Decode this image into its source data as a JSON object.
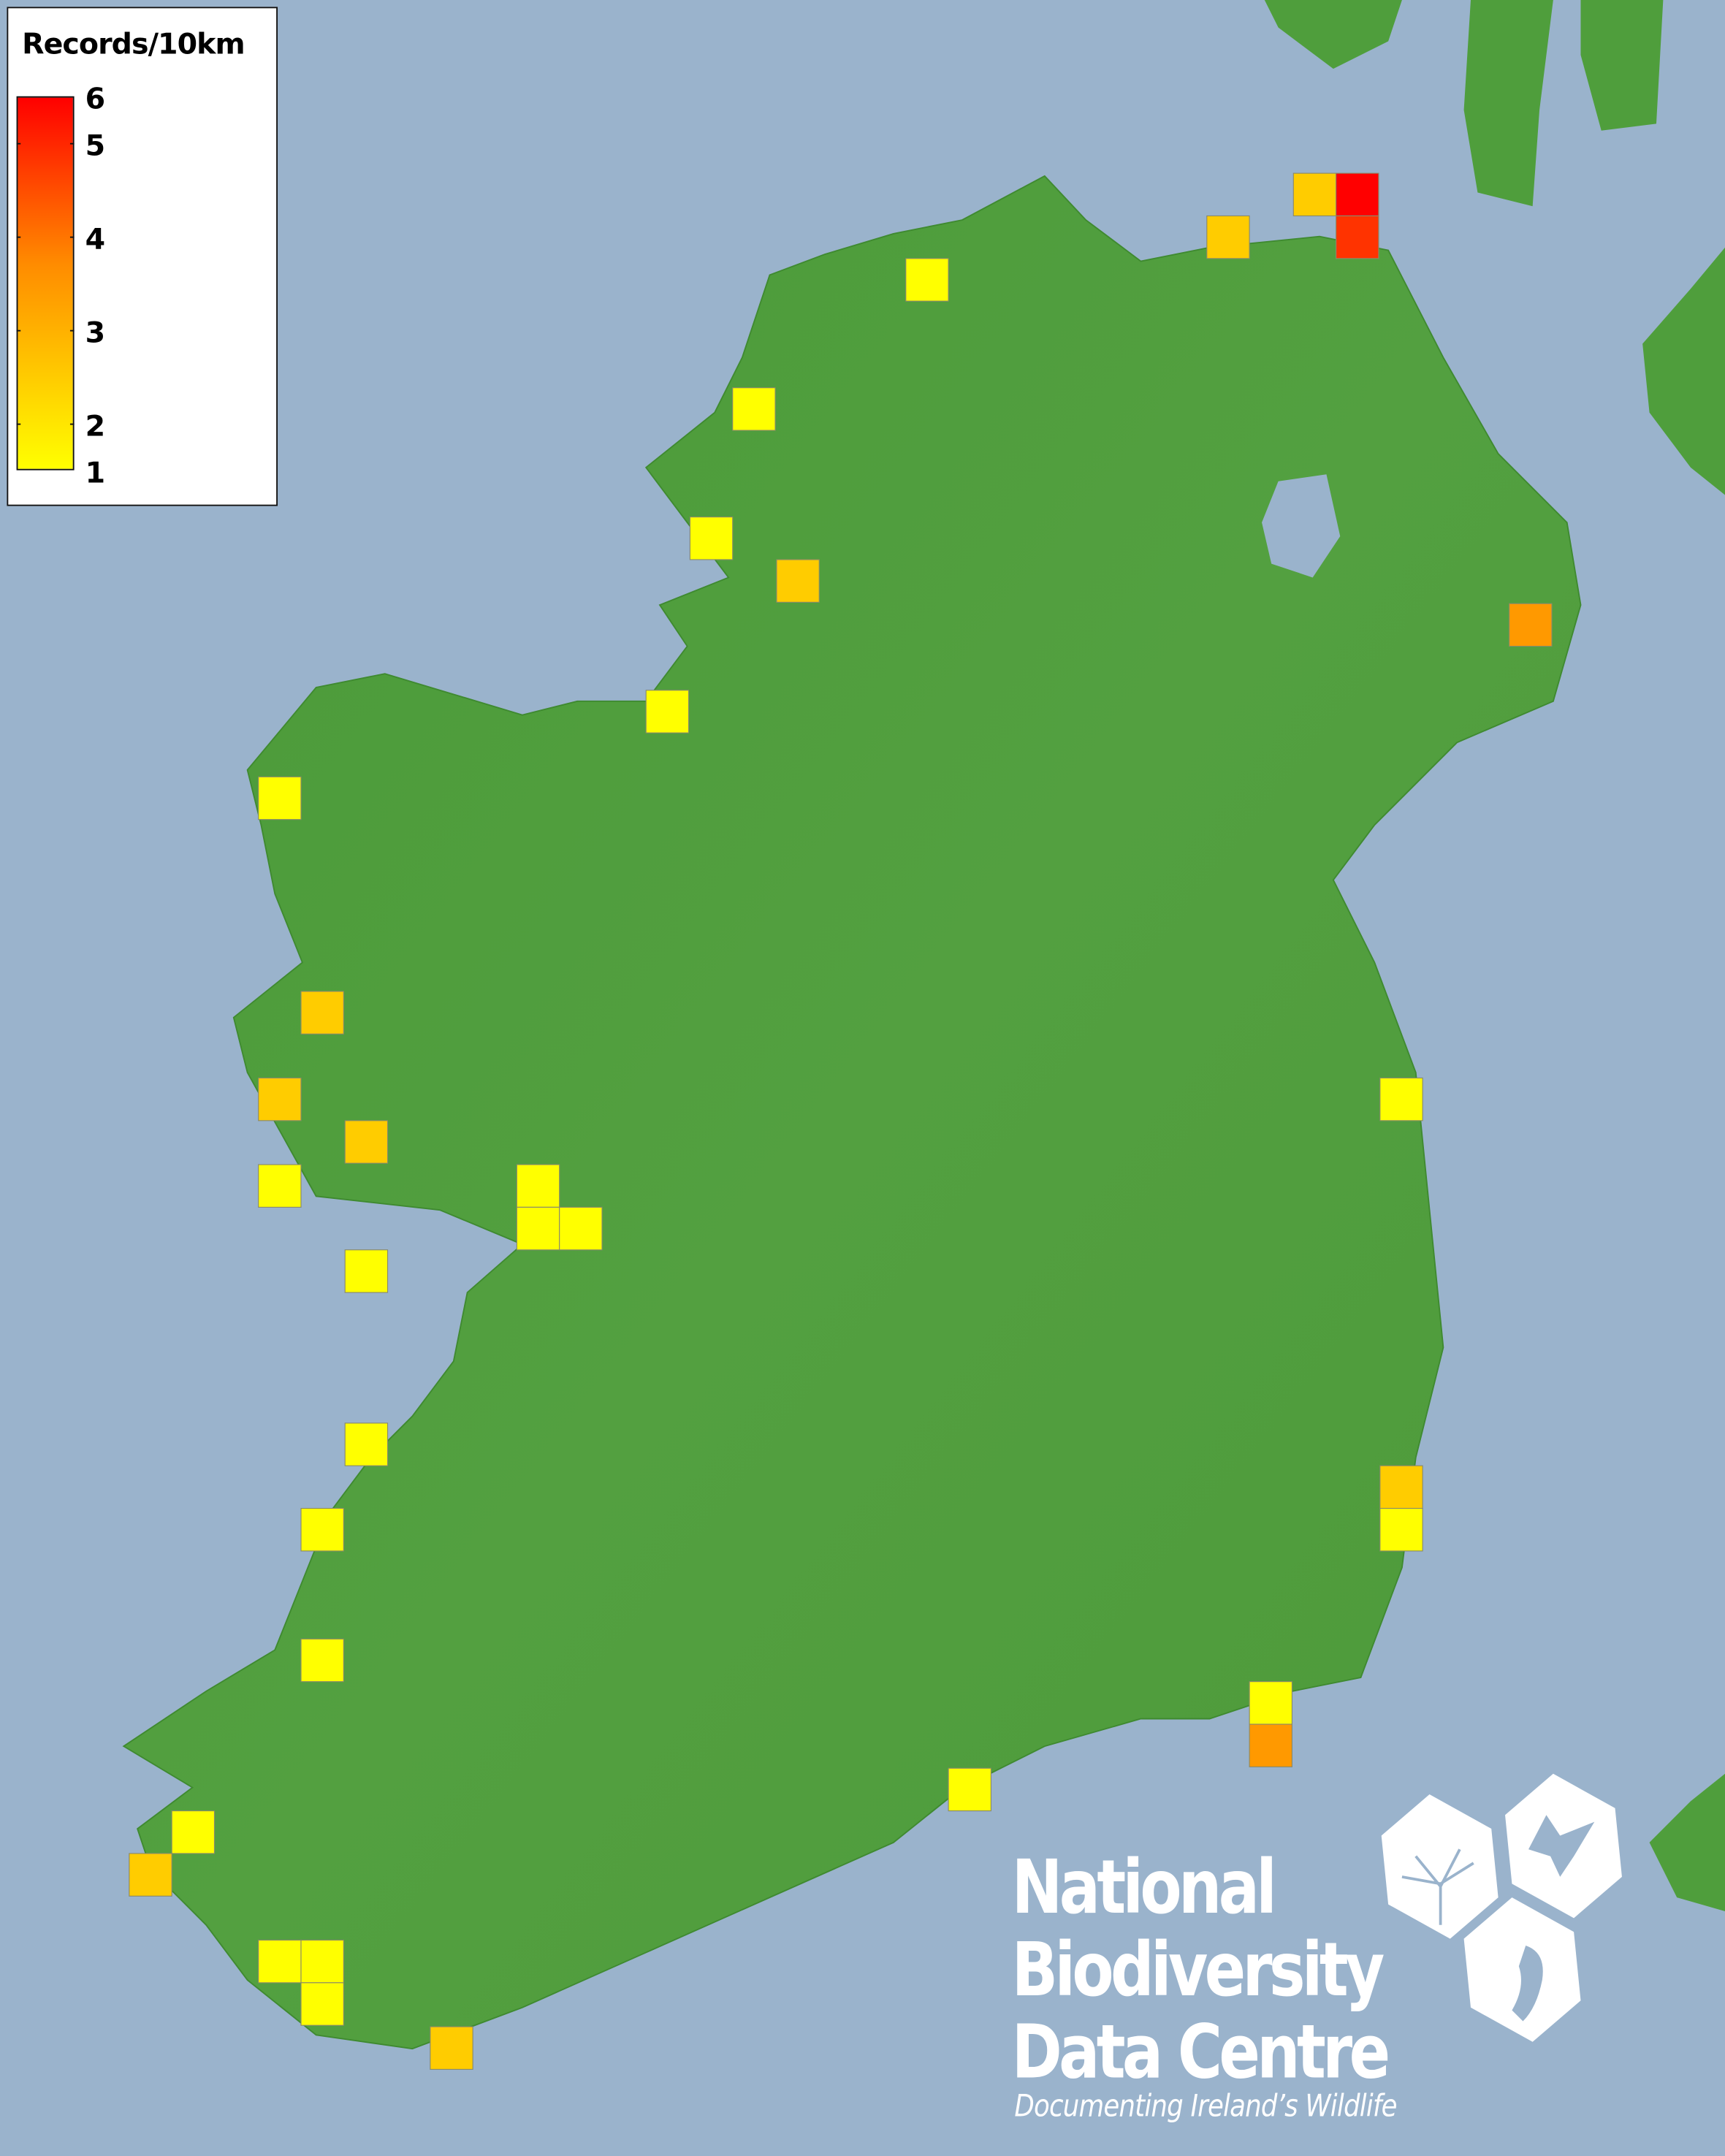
{
  "legend": {
    "title": "Records/10km",
    "ticks": [
      "6",
      "5",
      "4",
      "3",
      "2",
      "1"
    ],
    "min_value": 1,
    "max_value": 6,
    "color_low": "#ffff00",
    "color_mid": "#ff8c00",
    "color_high": "#ff0000"
  },
  "map": {
    "sea_color": "#9ab3cc",
    "land_color": "#4f9e3c",
    "square_values": [
      2,
      6,
      5,
      2,
      1,
      1,
      1,
      2,
      3,
      1,
      1,
      2,
      2,
      2,
      1,
      1,
      1,
      1,
      1,
      1,
      1,
      1,
      2,
      1,
      1,
      1,
      3,
      1,
      1,
      2,
      1,
      1,
      1,
      2
    ]
  },
  "logo": {
    "line1": "National",
    "line2": "Biodiversity",
    "line3": "Data Centre",
    "tagline": "Documenting Ireland’s Wildlife"
  }
}
